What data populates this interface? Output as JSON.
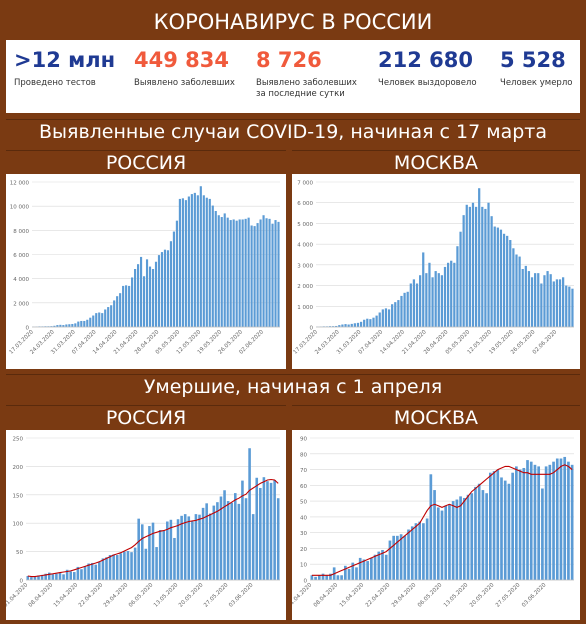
{
  "header": {
    "title": "КОРОНАВИРУС В РОССИИ"
  },
  "stats": [
    {
      "value": ">12 млн",
      "label": "Проведено тестов",
      "label2": "",
      "color": "#1f3a93"
    },
    {
      "value": "449 834",
      "label": "Выявлено заболевших",
      "label2": "",
      "color": "#f05a3c"
    },
    {
      "value": "8 726",
      "label": "Выявлено заболевших",
      "label2": "за последние сутки",
      "color": "#f05a3c"
    },
    {
      "value": "212 680",
      "label": "Человек выздоровело",
      "label2": "",
      "color": "#1f3a93"
    },
    {
      "value": "5 528",
      "label": "Человек умерло",
      "label2": "",
      "color": "#1f3a93"
    }
  ],
  "section1": {
    "title": "Выявленные случаи COVID-19, начиная с 17 марта",
    "left": "РОССИЯ",
    "right": "МОСКВА"
  },
  "section2": {
    "title": "Умершие, начиная с 1 апреля",
    "left": "РОССИЯ",
    "right": "МОСКВА"
  },
  "colors": {
    "bar": "#5b9bd5",
    "line": "#c00000",
    "grid": "#d9d9d9",
    "background": "#7a3a12"
  },
  "chart_data": [
    {
      "type": "bar",
      "region": "Россия",
      "metric": "cases",
      "ylim": [
        0,
        12000
      ],
      "yticks": [
        0,
        2000,
        4000,
        6000,
        8000,
        10000,
        12000
      ],
      "ytick_labels": [
        "0",
        "2 000",
        "4 000",
        "6 000",
        "8 000",
        "10 000",
        "12 000"
      ],
      "xtick_labels": [
        "17.03.2020",
        "24.03.2020",
        "31.03.2020",
        "07.04.2020",
        "14.04.2020",
        "21.04.2020",
        "28.04.2020",
        "05.05.2020",
        "12.05.2020",
        "19.05.2020",
        "26.05.2020",
        "02.06.2020"
      ],
      "values": [
        20,
        30,
        50,
        50,
        60,
        60,
        70,
        100,
        160,
        180,
        160,
        210,
        230,
        250,
        300,
        450,
        500,
        500,
        600,
        770,
        950,
        1150,
        1200,
        1150,
        1450,
        1650,
        1800,
        2200,
        2550,
        2800,
        3400,
        3450,
        3400,
        4100,
        4800,
        5200,
        5800,
        4200,
        5600,
        5000,
        4800,
        5400,
        5950,
        6200,
        6400,
        6350,
        7100,
        7900,
        8800,
        10600,
        10650,
        10500,
        10800,
        11000,
        11100,
        10900,
        11650,
        10900,
        10700,
        10600,
        10050,
        9600,
        9250,
        9100,
        9400,
        9050,
        8850,
        8900,
        8800,
        8900,
        8900,
        8950,
        9050,
        8400,
        8350,
        8600,
        8900,
        9250,
        9000,
        8950,
        8550,
        8850,
        8700
      ]
    },
    {
      "type": "bar",
      "region": "Москва",
      "metric": "cases",
      "ylim": [
        0,
        7000
      ],
      "yticks": [
        0,
        1000,
        2000,
        3000,
        4000,
        5000,
        6000,
        7000
      ],
      "ytick_labels": [
        "0",
        "1 000",
        "2 000",
        "3 000",
        "4 000",
        "5 000",
        "6 000",
        "7 000"
      ],
      "xtick_labels": [
        "17.03.2020",
        "24.03.2020",
        "31.03.2020",
        "07.04.2020",
        "14.04.2020",
        "21.04.2020",
        "28.04.2020",
        "05.05.2020",
        "12.05.2020",
        "19.05.2020",
        "26.05.2020",
        "02.06.2020"
      ],
      "values": [
        10,
        20,
        30,
        30,
        40,
        40,
        50,
        90,
        120,
        140,
        120,
        150,
        180,
        200,
        250,
        350,
        400,
        380,
        450,
        550,
        700,
        850,
        900,
        850,
        1100,
        1200,
        1300,
        1500,
        1650,
        1700,
        2100,
        2300,
        2100,
        2500,
        3600,
        2600,
        3100,
        2400,
        2700,
        2600,
        2500,
        2900,
        3100,
        3200,
        3100,
        3900,
        4600,
        5400,
        5900,
        5800,
        6000,
        5800,
        6700,
        5800,
        5700,
        6000,
        5350,
        4850,
        4800,
        4700,
        4500,
        4400,
        4200,
        3800,
        3500,
        3400,
        2800,
        2950,
        2700,
        2400,
        2600,
        2600,
        2100,
        2500,
        2700,
        2550,
        2200,
        2300,
        2300,
        2400,
        2000,
        1950,
        1850
      ]
    },
    {
      "type": "bar",
      "region": "Россия",
      "metric": "deaths",
      "ylim": [
        0,
        250
      ],
      "yticks": [
        0,
        50,
        100,
        150,
        200,
        250
      ],
      "ytick_labels": [
        "0",
        "50",
        "100",
        "150",
        "200",
        "250"
      ],
      "xtick_labels": [
        "01.04.2020",
        "08.04.2020",
        "15.04.2020",
        "22.04.2020",
        "29.04.2020",
        "06.05.2020",
        "13.05.2020",
        "20.05.2020",
        "27.05.2020",
        "03.06.2020"
      ],
      "values": [
        7,
        5,
        6,
        8,
        9,
        11,
        13,
        10,
        11,
        13,
        10,
        18,
        15,
        14,
        23,
        19,
        24,
        29,
        30,
        27,
        32,
        38,
        40,
        44,
        45,
        44,
        47,
        50,
        51,
        49,
        57,
        108,
        98,
        55,
        95,
        101,
        58,
        88,
        87,
        103,
        106,
        74,
        107,
        113,
        116,
        112,
        103,
        116,
        115,
        127,
        135,
        117,
        131,
        137,
        147,
        158,
        139,
        136,
        153,
        134,
        175,
        144,
        232,
        116,
        180,
        162,
        181,
        174,
        171,
        176,
        144
      ],
      "line": [
        7,
        6,
        6,
        7,
        8,
        9,
        10,
        11,
        12,
        13,
        14,
        15,
        16,
        18,
        20,
        22,
        24,
        26,
        28,
        30,
        32,
        35,
        38,
        41,
        44,
        46,
        48,
        51,
        54,
        57,
        62,
        68,
        73,
        76,
        79,
        82,
        84,
        86,
        87,
        89,
        92,
        94,
        96,
        99,
        101,
        103,
        104,
        105,
        107,
        109,
        112,
        115,
        118,
        121,
        125,
        129,
        133,
        137,
        141,
        144,
        148,
        151,
        158,
        162,
        166,
        170,
        173,
        176,
        177,
        176,
        170
      ]
    },
    {
      "type": "bar",
      "region": "Москва",
      "metric": "deaths",
      "ylim": [
        0,
        90
      ],
      "yticks": [
        0,
        10,
        20,
        30,
        40,
        50,
        60,
        70,
        80,
        90
      ],
      "ytick_labels": [
        "0",
        "10",
        "20",
        "30",
        "40",
        "50",
        "60",
        "70",
        "80",
        "90"
      ],
      "xtick_labels": [
        "01.04.2020",
        "08.04.2020",
        "15.04.2020",
        "22.04.2020",
        "29.04.2020",
        "06.05.2020",
        "13.05.2020",
        "20.05.2020",
        "27.05.2020",
        "03.06.2020"
      ],
      "values": [
        3,
        2,
        3,
        4,
        3,
        4,
        8,
        3,
        3,
        9,
        7,
        11,
        8,
        14,
        13,
        12,
        14,
        16,
        18,
        19,
        16,
        25,
        28,
        28,
        29,
        28,
        32,
        34,
        36,
        37,
        36,
        39,
        67,
        57,
        46,
        44,
        47,
        48,
        50,
        51,
        53,
        52,
        54,
        55,
        59,
        61,
        57,
        55,
        68,
        69,
        70,
        65,
        63,
        61,
        68,
        72,
        70,
        71,
        76,
        75,
        73,
        72,
        58,
        72,
        73,
        75,
        77,
        77,
        78,
        75,
        73
      ],
      "line": [
        3,
        3,
        3,
        3,
        3,
        3,
        4,
        5,
        6,
        7,
        8,
        9,
        10,
        11,
        12,
        13,
        14,
        15,
        16,
        17,
        18,
        20,
        22,
        24,
        26,
        28,
        30,
        32,
        34,
        36,
        40,
        44,
        47,
        48,
        47,
        46,
        47,
        48,
        47,
        46,
        47,
        50,
        53,
        56,
        58,
        60,
        62,
        64,
        66,
        68,
        70,
        71,
        72,
        72,
        71,
        70,
        69,
        68,
        68,
        67,
        67,
        67,
        67,
        67,
        67,
        68,
        70,
        72,
        73,
        72,
        70
      ]
    }
  ]
}
